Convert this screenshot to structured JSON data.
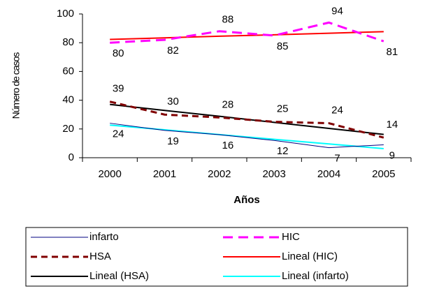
{
  "chart_data": {
    "type": "line",
    "x_label": "Años",
    "y_label": "Número de casos",
    "categories": [
      "2000",
      "2001",
      "2002",
      "2003",
      "2004",
      "2005"
    ],
    "ylim": [
      0,
      100
    ],
    "yticks": [
      0,
      20,
      40,
      60,
      80,
      100
    ],
    "series": [
      {
        "name": "infarto",
        "color": "#000080",
        "width": 1,
        "dash": "none",
        "data_labels": true,
        "values": [
          24,
          19,
          16,
          12,
          7,
          9
        ]
      },
      {
        "name": "HIC",
        "color": "#ff00ff",
        "width": 3,
        "dash": "14,8",
        "data_labels": true,
        "values": [
          80,
          82,
          88,
          85,
          94,
          81
        ]
      },
      {
        "name": "HSA",
        "color": "#800000",
        "width": 3,
        "dash": "9,6",
        "data_labels": true,
        "values": [
          39,
          30,
          28,
          25,
          24,
          14
        ]
      },
      {
        "name": "Lineal (HIC)",
        "color": "#ff0000",
        "width": 2,
        "dash": "none",
        "data_labels": false,
        "values": [
          82.3,
          83.4,
          84.5,
          85.5,
          86.6,
          87.7
        ]
      },
      {
        "name": "Lineal (HSA)",
        "color": "#000000",
        "width": 2,
        "dash": "none",
        "data_labels": false,
        "values": [
          37.1,
          32.9,
          28.8,
          24.6,
          20.4,
          16.2
        ]
      },
      {
        "name": "Lineal (infarto)",
        "color": "#00ffff",
        "width": 2,
        "dash": "none",
        "data_labels": false,
        "values": [
          22.7,
          19.4,
          16.1,
          12.8,
          9.6,
          6.3
        ]
      }
    ]
  }
}
